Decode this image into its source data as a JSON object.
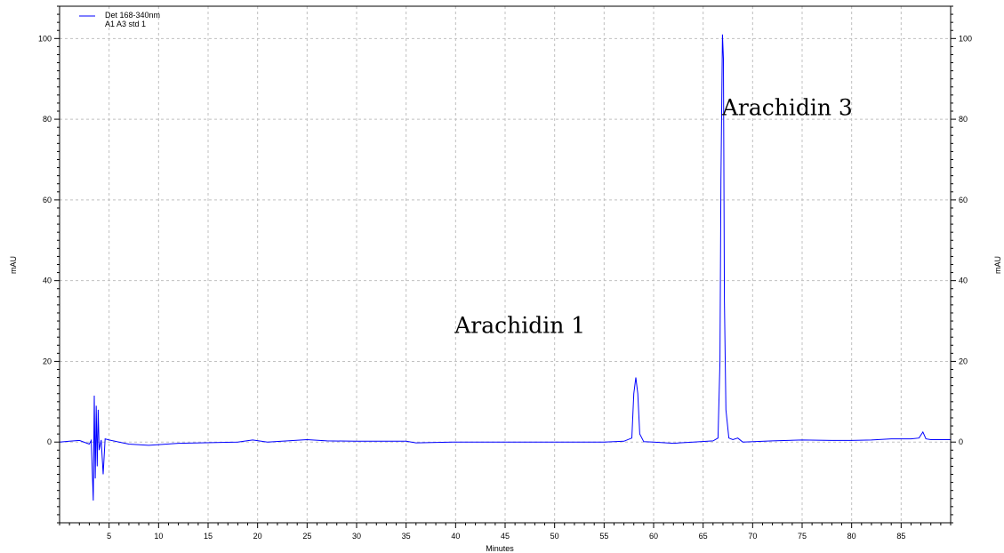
{
  "chart_data": {
    "type": "line",
    "xlabel": "Minutes",
    "ylabel": "mAU",
    "ylabel_right": "mAU",
    "xlim": [
      0,
      90
    ],
    "ylim": [
      -20,
      108
    ],
    "x_ticks": [
      5,
      10,
      15,
      20,
      25,
      30,
      35,
      40,
      45,
      50,
      55,
      60,
      65,
      70,
      75,
      80,
      85
    ],
    "y_ticks": [
      0,
      20,
      40,
      60,
      80,
      100
    ],
    "grid": "dashed",
    "legend_position": "top-left",
    "legend": [
      "Det 168-340nm",
      "A1 A3 std 1"
    ],
    "series": [
      {
        "name": "A1 A3 std 1",
        "color": "#0000ff",
        "points": [
          [
            0,
            0
          ],
          [
            1,
            0.2
          ],
          [
            2,
            0.4
          ],
          [
            3,
            -0.5
          ],
          [
            3.2,
            0.4
          ],
          [
            3.4,
            -14.5
          ],
          [
            3.5,
            11.5
          ],
          [
            3.6,
            -9
          ],
          [
            3.7,
            9
          ],
          [
            3.8,
            -6
          ],
          [
            3.9,
            8
          ],
          [
            4.0,
            -2
          ],
          [
            4.2,
            0.5
          ],
          [
            4.4,
            -8
          ],
          [
            4.6,
            0.8
          ],
          [
            5,
            0.5
          ],
          [
            6,
            0
          ],
          [
            7,
            -0.5
          ],
          [
            9,
            -0.8
          ],
          [
            12,
            -0.3
          ],
          [
            18,
            0
          ],
          [
            19.5,
            0.5
          ],
          [
            21,
            0
          ],
          [
            23,
            0.3
          ],
          [
            25,
            0.6
          ],
          [
            27,
            0.3
          ],
          [
            30,
            0.2
          ],
          [
            35,
            0.2
          ],
          [
            36,
            -0.2
          ],
          [
            40,
            0
          ],
          [
            50,
            0
          ],
          [
            55,
            0
          ],
          [
            57,
            0.2
          ],
          [
            57.8,
            1
          ],
          [
            58.0,
            12
          ],
          [
            58.2,
            16
          ],
          [
            58.4,
            12
          ],
          [
            58.6,
            2
          ],
          [
            59,
            0.1
          ],
          [
            60,
            0
          ],
          [
            62,
            -0.3
          ],
          [
            64,
            0
          ],
          [
            66,
            0.3
          ],
          [
            66.5,
            1
          ],
          [
            66.7,
            20
          ],
          [
            66.8,
            65
          ],
          [
            66.95,
            101
          ],
          [
            67.05,
            95
          ],
          [
            67.15,
            35
          ],
          [
            67.3,
            8
          ],
          [
            67.6,
            1
          ],
          [
            68,
            0.6
          ],
          [
            68.5,
            1
          ],
          [
            69,
            0
          ],
          [
            72,
            0.3
          ],
          [
            75,
            0.5
          ],
          [
            78,
            0.4
          ],
          [
            80,
            0.4
          ],
          [
            82,
            0.5
          ],
          [
            84,
            0.8
          ],
          [
            86,
            0.8
          ],
          [
            86.8,
            1
          ],
          [
            87.2,
            2.5
          ],
          [
            87.5,
            0.8
          ],
          [
            88,
            0.6
          ],
          [
            90,
            0.6
          ]
        ]
      }
    ],
    "annotations": [
      {
        "text": "Arachidin 1",
        "x": 46.5,
        "y": 27
      },
      {
        "text": "Arachidin 3",
        "x": 73.5,
        "y": 81
      }
    ]
  }
}
